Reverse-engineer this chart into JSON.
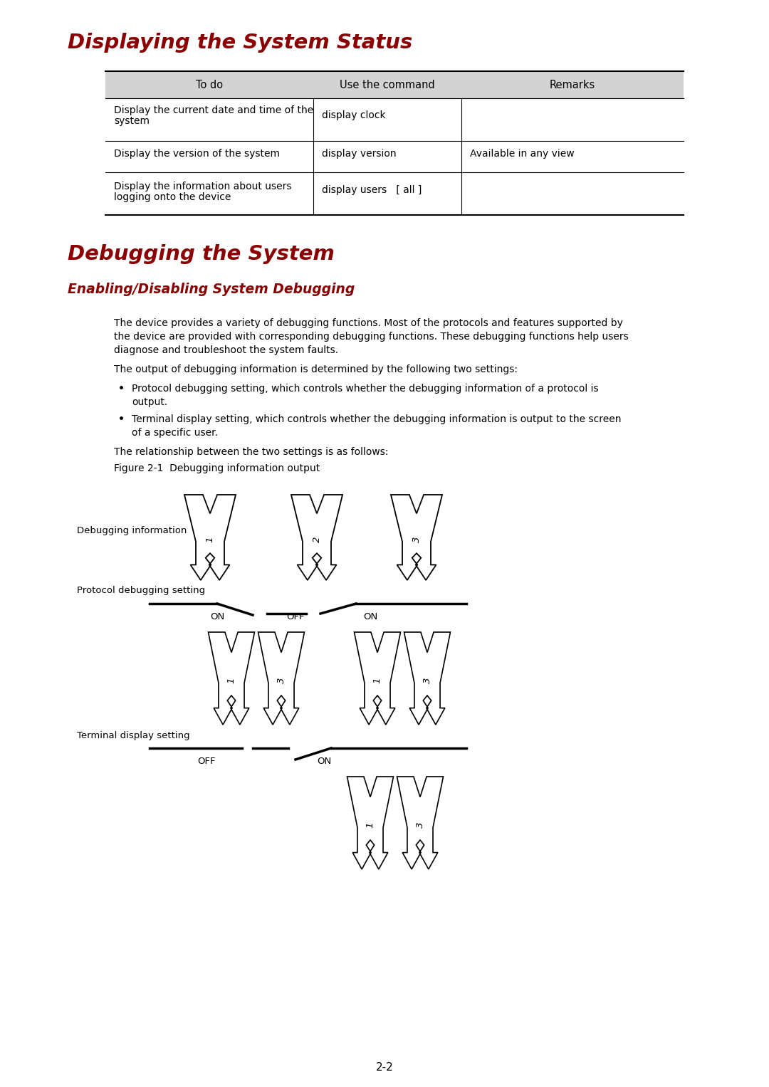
{
  "title1": "Displaying the System Status",
  "title2": "Debugging the System",
  "title3": "Enabling/Disabling System Debugging",
  "title_color": "#8B0000",
  "table_header": [
    "To do",
    "Use the command",
    "Remarks"
  ],
  "header_bg": "#D3D3D3",
  "para1_lines": [
    "The device provides a variety of debugging functions. Most of the protocols and features supported by",
    "the device are provided with corresponding debugging functions. These debugging functions help users",
    "diagnose and troubleshoot the system faults."
  ],
  "para2": "The output of debugging information is determined by the following two settings:",
  "bullet1a": "Protocol debugging setting, which controls whether the debugging information of a protocol is",
  "bullet1b": "output.",
  "bullet2a": "Terminal display setting, which controls whether the debugging information is output to the screen",
  "bullet2b": "of a specific user.",
  "para3": "The relationship between the two settings is as follows:",
  "fig_caption": "Figure 2-1  Debugging information output",
  "page_num": "2-2",
  "label_debug_info": "Debugging information",
  "label_protocol": "Protocol debugging setting",
  "label_terminal": "Terminal display setting"
}
